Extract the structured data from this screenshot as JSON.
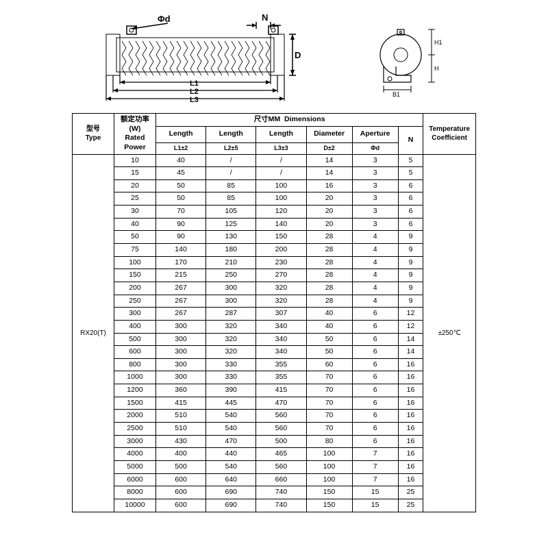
{
  "diagram": {
    "phi_d_label": "Φd",
    "n_label": "N",
    "d_label": "D",
    "l1_label": "L1",
    "l2_label": "L2",
    "l3_label": "L3",
    "h1_label": "H1",
    "h_label": "H",
    "b1_label": "B1",
    "stroke": "#000000",
    "bg": "#ffffff"
  },
  "table": {
    "headers": {
      "type_zh": "型号",
      "type_en": "Type",
      "rated_zh": "额定功率",
      "rated_unit": "(W)",
      "rated_en1": "Rated",
      "rated_en2": "Power",
      "dims_zh": "尺寸MM",
      "dims_en": "Dimensions",
      "length": "Length",
      "diameter": "Diameter",
      "aperture": "Aperture",
      "n": "N",
      "temp_en": "Temperature Coefficient",
      "l1_tol": "L1±2",
      "l2_tol": "L2±5",
      "l3_tol": "L3±3",
      "d_tol": "D±2",
      "phi_d": "Φd"
    },
    "type_value": "RX20(T)",
    "temp_value": "±250℃",
    "column_widths": [
      "50",
      "50",
      "60",
      "60",
      "60",
      "55",
      "55",
      "30",
      "60"
    ],
    "rows": [
      [
        "10",
        "40",
        "/",
        "/",
        "14",
        "3",
        "5"
      ],
      [
        "15",
        "45",
        "/",
        "/",
        "14",
        "3",
        "5"
      ],
      [
        "20",
        "50",
        "85",
        "100",
        "16",
        "3",
        "6"
      ],
      [
        "25",
        "50",
        "85",
        "100",
        "20",
        "3",
        "6"
      ],
      [
        "30",
        "70",
        "105",
        "120",
        "20",
        "3",
        "6"
      ],
      [
        "40",
        "90",
        "125",
        "140",
        "20",
        "3",
        "6"
      ],
      [
        "50",
        "90",
        "130",
        "150",
        "28",
        "4",
        "9"
      ],
      [
        "75",
        "140",
        "180",
        "200",
        "28",
        "4",
        "9"
      ],
      [
        "100",
        "170",
        "210",
        "230",
        "28",
        "4",
        "9"
      ],
      [
        "150",
        "215",
        "250",
        "270",
        "28",
        "4",
        "9"
      ],
      [
        "200",
        "267",
        "300",
        "320",
        "28",
        "4",
        "9"
      ],
      [
        "250",
        "267",
        "300",
        "320",
        "28",
        "4",
        "9"
      ],
      [
        "300",
        "267",
        "287",
        "307",
        "40",
        "6",
        "12"
      ],
      [
        "400",
        "300",
        "320",
        "340",
        "40",
        "6",
        "12"
      ],
      [
        "500",
        "300",
        "320",
        "340",
        "50",
        "6",
        "14"
      ],
      [
        "600",
        "300",
        "320",
        "340",
        "50",
        "6",
        "14"
      ],
      [
        "800",
        "300",
        "330",
        "355",
        "60",
        "6",
        "16"
      ],
      [
        "1000",
        "300",
        "330",
        "355",
        "70",
        "6",
        "16"
      ],
      [
        "1200",
        "360",
        "390",
        "415",
        "70",
        "6",
        "16"
      ],
      [
        "1500",
        "415",
        "445",
        "470",
        "70",
        "6",
        "16"
      ],
      [
        "2000",
        "510",
        "540",
        "560",
        "70",
        "6",
        "16"
      ],
      [
        "2500",
        "510",
        "540",
        "560",
        "70",
        "6",
        "16"
      ],
      [
        "3000",
        "430",
        "470",
        "500",
        "80",
        "6",
        "16"
      ],
      [
        "4000",
        "400",
        "440",
        "465",
        "100",
        "7",
        "16"
      ],
      [
        "5000",
        "500",
        "540",
        "560",
        "100",
        "7",
        "16"
      ],
      [
        "6000",
        "600",
        "640",
        "660",
        "100",
        "7",
        "16"
      ],
      [
        "8000",
        "600",
        "690",
        "740",
        "150",
        "15",
        "25"
      ],
      [
        "10000",
        "600",
        "690",
        "740",
        "150",
        "15",
        "25"
      ]
    ]
  }
}
